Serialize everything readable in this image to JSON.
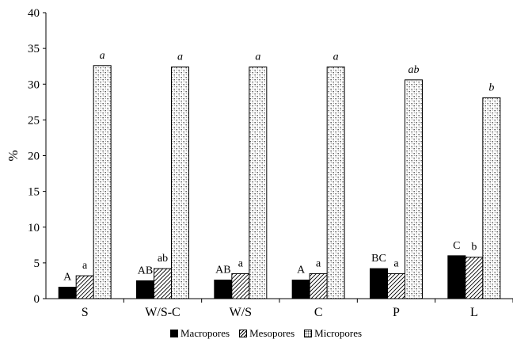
{
  "chart_data": {
    "type": "bar",
    "title": "",
    "xlabel": "",
    "ylabel": "%",
    "ylim": [
      0,
      40
    ],
    "yticks": [
      0,
      5,
      10,
      15,
      20,
      25,
      30,
      35,
      40
    ],
    "grid": false,
    "legend_position": "bottom",
    "categories": [
      "S",
      "W/S-C",
      "W/S",
      "C",
      "P",
      "L"
    ],
    "series": [
      {
        "name": "Macropores",
        "pattern": "solid-black",
        "values": [
          1.6,
          2.5,
          2.6,
          2.6,
          4.2,
          6.0
        ],
        "labels": [
          "A",
          "AB",
          "AB",
          "A",
          "BC",
          "C"
        ]
      },
      {
        "name": "Mesopores",
        "pattern": "diagonal-hatch",
        "values": [
          3.2,
          4.2,
          3.5,
          3.5,
          3.5,
          5.8
        ],
        "labels": [
          "a",
          "ab",
          "a",
          "a",
          "a",
          "b"
        ]
      },
      {
        "name": "Micropores",
        "pattern": "dotted",
        "values": [
          32.6,
          32.4,
          32.4,
          32.4,
          30.6,
          28.1
        ],
        "labels": [
          "a",
          "a",
          "a",
          "a",
          "ab",
          "b"
        ]
      }
    ]
  }
}
